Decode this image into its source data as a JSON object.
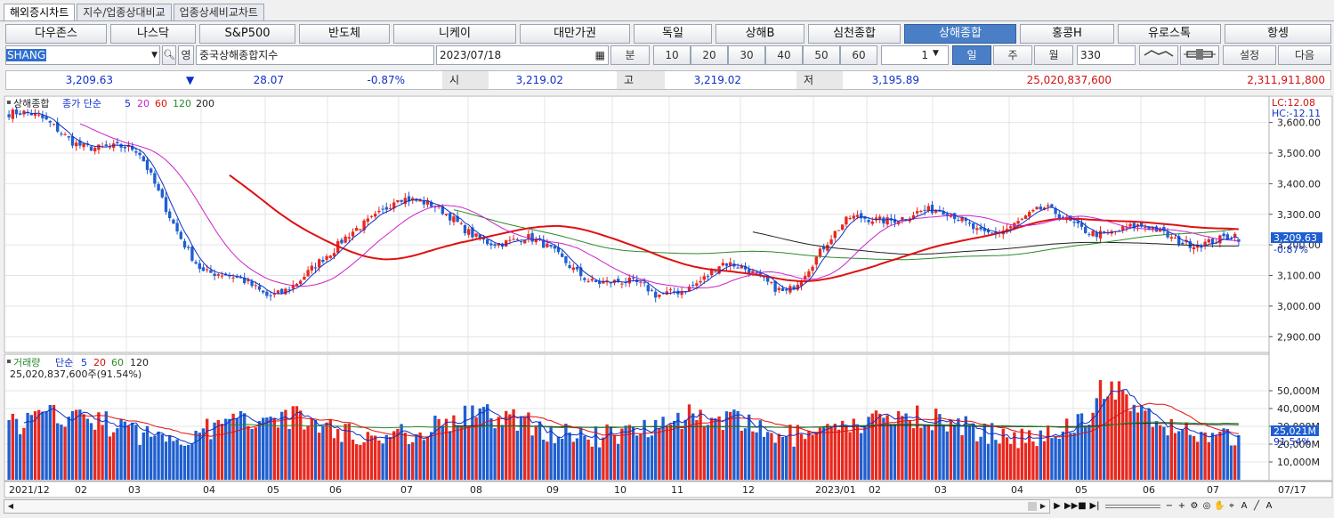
{
  "tabs": [
    {
      "label": "해외증시차트",
      "active": true
    },
    {
      "label": "지수/업종상대비교",
      "active": false
    },
    {
      "label": "업종상세비교차트",
      "active": false
    }
  ],
  "indices": [
    {
      "label": "다우존스",
      "active": false
    },
    {
      "label": "나스닥",
      "active": false
    },
    {
      "label": "S&P500",
      "active": false
    },
    {
      "label": "반도체",
      "active": false
    },
    {
      "label": "니케이",
      "active": false
    },
    {
      "label": "대만가권",
      "active": false
    },
    {
      "label": "독일",
      "active": false
    },
    {
      "label": "상해B",
      "active": false
    },
    {
      "label": "심천종합",
      "active": false
    },
    {
      "label": "상해종합",
      "active": true
    },
    {
      "label": "홍콩H",
      "active": false
    },
    {
      "label": "유로스톡",
      "active": false
    },
    {
      "label": "항셍",
      "active": false
    }
  ],
  "controls": {
    "code": "SHANG",
    "eng_label": "영",
    "name": "중국상해종합지수",
    "date": "2023/07/18",
    "minute_label": "분",
    "intervals": [
      "10",
      "20",
      "30",
      "40",
      "50",
      "60"
    ],
    "multiplier": "1",
    "periods": [
      {
        "label": "일",
        "active": true
      },
      {
        "label": "주",
        "active": false
      },
      {
        "label": "월",
        "active": false
      }
    ],
    "count": "330",
    "settings_label": "설정",
    "next_label": "다음"
  },
  "quote": {
    "price": "3,209.63",
    "arrow": "▼",
    "change": "28.07",
    "change_pct": "-0.87%",
    "open_label": "시",
    "open": "3,219.02",
    "high_label": "고",
    "high": "3,219.02",
    "low_label": "저",
    "low": "3,195.89",
    "volume": "25,020,837,600",
    "amount": "2,311,911,800"
  },
  "price_chart": {
    "legend": {
      "name": "상해종합",
      "ma_label": "종가 단순",
      "ma_periods": [
        "5",
        "20",
        "60",
        "120",
        "200"
      ]
    },
    "lc_label": "LC:12.08",
    "hc_label": "HC:-12.11",
    "y_ticks": [
      "3,600.00",
      "3,500.00",
      "3,400.00",
      "3,300.00",
      "3,200.00",
      "3,100.00",
      "3,000.00",
      "2,900.00"
    ],
    "current_tag": "3,209.63",
    "current_pct": "-0.87%"
  },
  "volume_chart": {
    "legend": {
      "name": "거래량",
      "ma_label": "단순",
      "ma_periods": [
        "5",
        "20",
        "60",
        "120"
      ]
    },
    "current_text": "25,020,837,600주(91.54%)",
    "y_ticks": [
      "50,000M",
      "40,000M",
      "30,000M",
      "20,000M",
      "10,000M"
    ],
    "current_tag": "25,021M",
    "current_pct": "91.54%"
  },
  "x_axis": {
    "labels": [
      "2021/12",
      "02",
      "03",
      "04",
      "05",
      "06",
      "07",
      "08",
      "09",
      "10",
      "11",
      "12",
      "2023/01",
      "02",
      "03",
      "04",
      "05",
      "06",
      "07"
    ],
    "end_label": "07/17"
  },
  "colors": {
    "up": "#e8281e",
    "down": "#1f5fd0",
    "ma5": "#1030c8",
    "ma20": "#cc22cc",
    "ma60": "#e01010",
    "ma120": "#2a8a2a",
    "ma200": "#222222"
  },
  "chart_data": {
    "type": "candlestick",
    "title": "상해종합",
    "y_range": [
      2860,
      3660
    ],
    "volume_range_millions": [
      0,
      58000
    ],
    "x_month_labels": [
      "2021/12",
      "02",
      "03",
      "04",
      "05",
      "06",
      "07",
      "08",
      "09",
      "10",
      "11",
      "12",
      "2023/01",
      "02",
      "03",
      "04",
      "05",
      "06",
      "07"
    ],
    "close_anchors": [
      {
        "month": "2021/12",
        "close": 3630
      },
      {
        "month": "01",
        "close": 3520
      },
      {
        "month": "02",
        "close": 3480
      },
      {
        "month": "03",
        "close": 3150
      },
      {
        "month": "04",
        "close": 3050
      },
      {
        "month": "05",
        "close": 3130
      },
      {
        "month": "06",
        "close": 3360
      },
      {
        "month": "07",
        "close": 3280
      },
      {
        "month": "08",
        "close": 3230
      },
      {
        "month": "09",
        "close": 3080
      },
      {
        "month": "10",
        "close": 3000
      },
      {
        "month": "11",
        "close": 3150
      },
      {
        "month": "12",
        "close": 3090
      },
      {
        "month": "2023/01",
        "close": 3260
      },
      {
        "month": "02",
        "close": 3280
      },
      {
        "month": "03",
        "close": 3260
      },
      {
        "month": "04",
        "close": 3330
      },
      {
        "month": "05",
        "close": 3250
      },
      {
        "month": "06",
        "close": 3190
      },
      {
        "month": "07",
        "close": 3209.63
      }
    ],
    "last": {
      "date": "2023/07/18",
      "open": 3219.02,
      "high": 3219.02,
      "low": 3195.89,
      "close": 3209.63,
      "volume": 25020837600
    }
  }
}
